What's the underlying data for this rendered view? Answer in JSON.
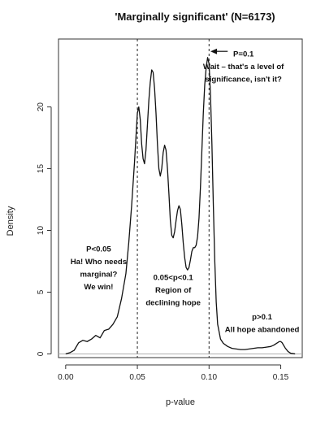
{
  "chart_data": {
    "type": "line",
    "title": "'Marginally significant' (N=6173)",
    "xlabel": "p-value",
    "ylabel": "Density",
    "xlim": [
      -0.005,
      0.165
    ],
    "ylim": [
      -0.3,
      25.5
    ],
    "xticks": [
      0.0,
      0.05,
      0.1,
      0.15
    ],
    "xtick_labels": [
      "0.00",
      "0.05",
      "0.10",
      "0.15"
    ],
    "yticks": [
      0,
      5,
      10,
      15,
      20
    ],
    "ytick_labels": [
      "0",
      "5",
      "10",
      "15",
      "20"
    ],
    "grid": false,
    "vlines": [
      0.05,
      0.1
    ],
    "series": [
      {
        "x": [
          0.0,
          0.003,
          0.006,
          0.009,
          0.012,
          0.015,
          0.018,
          0.021,
          0.024,
          0.027,
          0.03,
          0.033,
          0.036,
          0.039,
          0.042,
          0.044,
          0.046,
          0.048,
          0.049,
          0.05,
          0.051,
          0.052,
          0.053,
          0.054,
          0.055,
          0.056,
          0.057,
          0.058,
          0.059,
          0.06,
          0.061,
          0.062,
          0.063,
          0.064,
          0.065,
          0.066,
          0.067,
          0.068,
          0.069,
          0.07,
          0.071,
          0.072,
          0.073,
          0.074,
          0.075,
          0.076,
          0.077,
          0.078,
          0.079,
          0.08,
          0.081,
          0.082,
          0.083,
          0.084,
          0.085,
          0.086,
          0.087,
          0.088,
          0.089,
          0.09,
          0.091,
          0.092,
          0.093,
          0.094,
          0.095,
          0.096,
          0.097,
          0.098,
          0.099,
          0.1,
          0.101,
          0.102,
          0.103,
          0.104,
          0.105,
          0.106,
          0.108,
          0.11,
          0.113,
          0.116,
          0.119,
          0.122,
          0.125,
          0.128,
          0.131,
          0.134,
          0.137,
          0.14,
          0.143,
          0.145,
          0.147,
          0.149,
          0.15,
          0.151,
          0.152,
          0.153,
          0.155,
          0.157,
          0.16
        ],
        "y": [
          0.0,
          0.1,
          0.3,
          0.9,
          1.1,
          1.0,
          1.2,
          1.5,
          1.3,
          1.9,
          2.0,
          2.4,
          3.0,
          4.5,
          6.5,
          9.0,
          12.0,
          15.5,
          17.5,
          19.5,
          20.0,
          19.0,
          17.0,
          15.8,
          15.4,
          16.5,
          18.5,
          20.5,
          22.0,
          23.0,
          22.8,
          21.5,
          19.5,
          17.0,
          15.0,
          14.4,
          15.0,
          16.3,
          16.9,
          16.5,
          15.0,
          13.0,
          10.8,
          9.6,
          9.4,
          9.9,
          10.8,
          11.6,
          12.0,
          11.7,
          10.5,
          9.0,
          7.8,
          7.0,
          6.8,
          7.0,
          7.6,
          8.3,
          8.6,
          8.6,
          8.8,
          9.5,
          11.0,
          13.5,
          16.5,
          19.5,
          21.8,
          23.2,
          24.0,
          23.5,
          21.0,
          17.0,
          12.0,
          7.5,
          4.2,
          2.4,
          1.2,
          0.85,
          0.6,
          0.45,
          0.4,
          0.35,
          0.35,
          0.4,
          0.45,
          0.5,
          0.5,
          0.55,
          0.6,
          0.7,
          0.85,
          1.0,
          1.0,
          0.9,
          0.7,
          0.5,
          0.2,
          0.05,
          0.0
        ]
      }
    ],
    "annotations": [
      {
        "x": 0.124,
        "y": 24.1,
        "anchor": "middle",
        "lines": [
          "P=0.1",
          "Wait – that's a level of",
          "significance, isn't it?"
        ]
      },
      {
        "x": 0.023,
        "y": 8.3,
        "anchor": "middle",
        "lines": [
          "P<0.05",
          "Ha! Who needs",
          "marginal?",
          "We win!"
        ]
      },
      {
        "x": 0.075,
        "y": 6.0,
        "anchor": "middle",
        "lines": [
          "0.05<p<0.1",
          "Region of",
          "declining hope"
        ]
      },
      {
        "x": 0.137,
        "y": 2.8,
        "anchor": "middle",
        "lines": [
          "p>0.1",
          "All hope abandoned"
        ]
      }
    ],
    "arrow": {
      "from": [
        0.113,
        24.5
      ],
      "to": [
        0.101,
        24.5
      ]
    },
    "colors": {
      "line": "#111111",
      "vline": "#222222",
      "baseline": "#b0b0b0",
      "axis": "#333333"
    }
  }
}
